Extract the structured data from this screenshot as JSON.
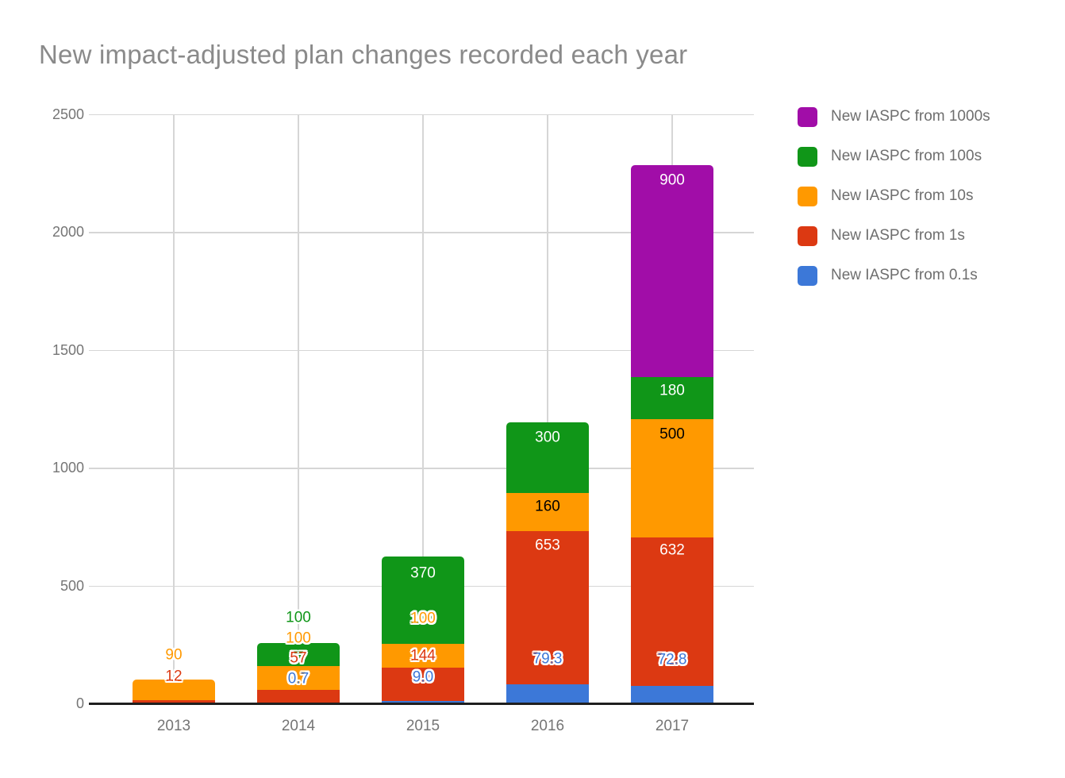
{
  "title": "New impact-adjusted plan changes recorded each year",
  "legend": {
    "position": "right",
    "items": [
      {
        "label": "New IASPC from 1000s",
        "color": "#a10da8"
      },
      {
        "label": "New IASPC from 100s",
        "color": "#109618"
      },
      {
        "label": "New IASPC from 10s",
        "color": "#ff9900"
      },
      {
        "label": "New IASPC from 1s",
        "color": "#dc3912"
      },
      {
        "label": "New IASPC from 0.1s",
        "color": "#3c78d8"
      }
    ]
  },
  "chart_data": {
    "type": "bar",
    "stacked": true,
    "title": "New impact-adjusted plan changes recorded each year",
    "categories": [
      "2013",
      "2014",
      "2015",
      "2016",
      "2017"
    ],
    "series": [
      {
        "name": "New IASPC from 0.1s",
        "color": "#3c78d8",
        "values": [
          0,
          0.7,
          9.0,
          79.3,
          72.8
        ],
        "labels": [
          "",
          "0.7",
          "9.0",
          "79.3",
          "72.8"
        ]
      },
      {
        "name": "New IASPC from 1s",
        "color": "#dc3912",
        "values": [
          12,
          57,
          144,
          653,
          632
        ],
        "labels": [
          "12",
          "57",
          "144",
          "653",
          "632"
        ]
      },
      {
        "name": "New IASPC from 10s",
        "color": "#ff9900",
        "values": [
          90,
          100,
          100,
          160,
          500
        ],
        "labels": [
          "90",
          "100",
          "100",
          "160",
          "500"
        ]
      },
      {
        "name": "New IASPC from 100s",
        "color": "#109618",
        "values": [
          0,
          100,
          370,
          300,
          180
        ],
        "labels": [
          "",
          "100",
          "370",
          "300",
          "180"
        ]
      },
      {
        "name": "New IASPC from 1000s",
        "color": "#a10da8",
        "values": [
          0,
          0,
          0,
          0,
          900
        ],
        "labels": [
          "",
          "",
          "",
          "",
          "900"
        ]
      }
    ],
    "xlabel": "",
    "ylabel": "",
    "y_axis": {
      "min": 0,
      "max": 2500,
      "step": 500,
      "tick_labels": [
        "0",
        "500",
        "1000",
        "1500",
        "2000",
        "2500"
      ]
    },
    "grid": true,
    "legend_position": "right"
  }
}
